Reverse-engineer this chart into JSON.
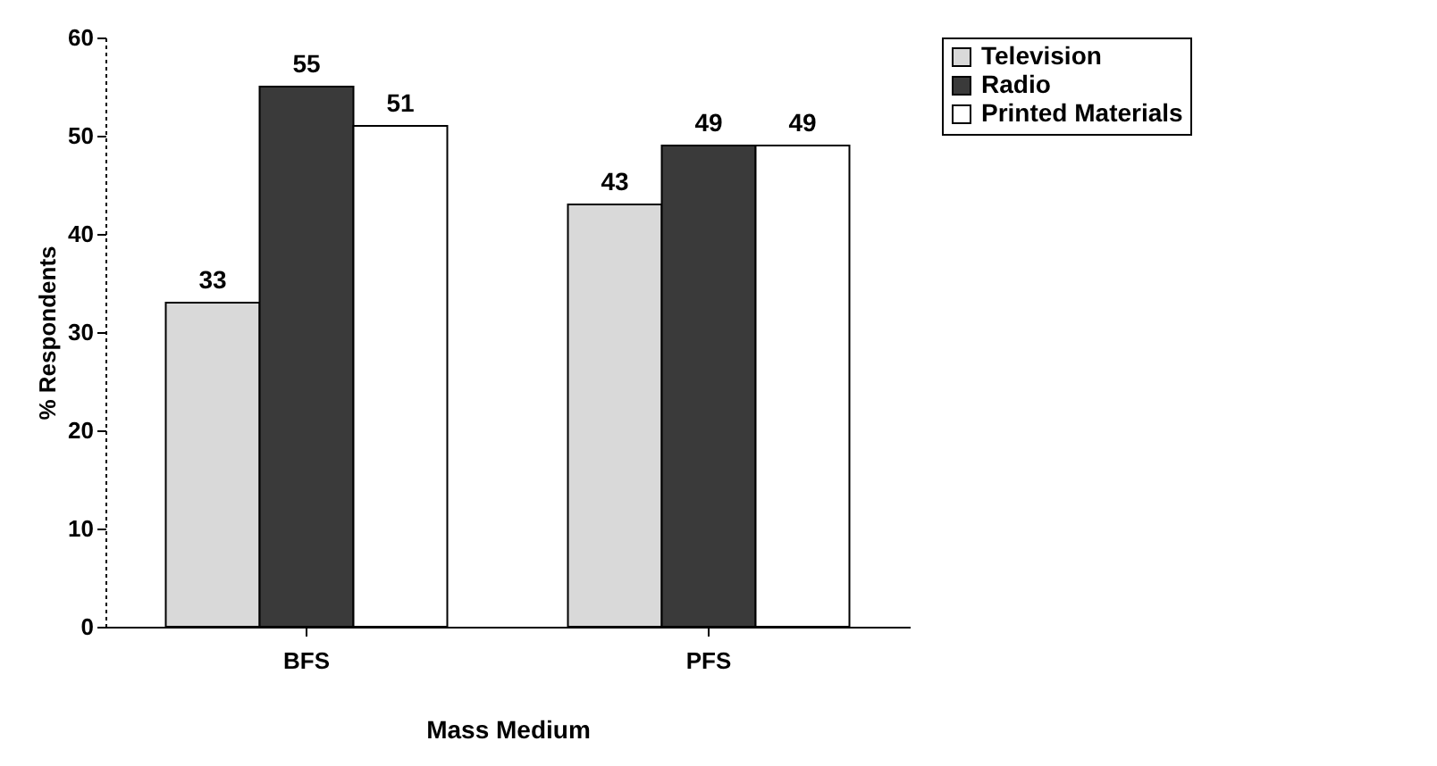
{
  "chart_data": {
    "type": "bar",
    "xlabel": "Mass Medium",
    "ylabel": "% Respondents",
    "categories": [
      "BFS",
      "PFS"
    ],
    "series": [
      {
        "name": "Television",
        "color": "#d9d9d9",
        "values": [
          33,
          43
        ]
      },
      {
        "name": "Radio",
        "color": "#3a3a3a",
        "values": [
          55,
          49
        ]
      },
      {
        "name": "Printed Materials",
        "color": "#ffffff",
        "values": [
          51,
          49
        ]
      }
    ],
    "ylim": [
      0,
      60
    ],
    "yticks": [
      0,
      10,
      20,
      30,
      40,
      50,
      60
    ],
    "data_labels": true,
    "legend": "right"
  }
}
